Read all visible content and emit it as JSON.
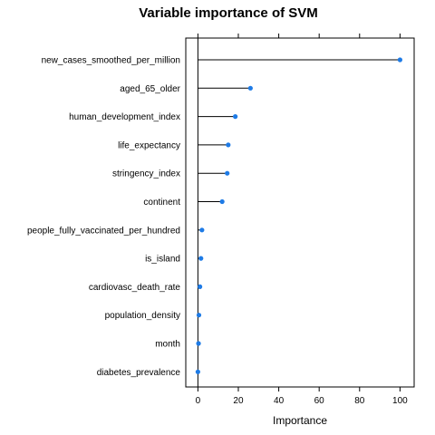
{
  "chart_data": {
    "type": "dot",
    "title": "Variable importance of SVM",
    "xlabel": "Importance",
    "ylabel": "",
    "xlim": [
      -6,
      107
    ],
    "xticks": [
      0,
      20,
      40,
      60,
      80,
      100
    ],
    "grid": false,
    "series": [
      {
        "color": "#1e7be6",
        "categories": [
          "new_cases_smoothed_per_million",
          "aged_65_older",
          "human_development_index",
          "life_expectancy",
          "stringency_index",
          "continent",
          "people_fully_vaccinated_per_hundred",
          "is_island",
          "cardiovasc_death_rate",
          "population_density",
          "month",
          "diabetes_prevalence"
        ],
        "values": [
          100,
          26,
          18.5,
          15,
          14.5,
          12,
          2,
          1.5,
          1,
          0.5,
          0.3,
          0
        ]
      }
    ]
  }
}
